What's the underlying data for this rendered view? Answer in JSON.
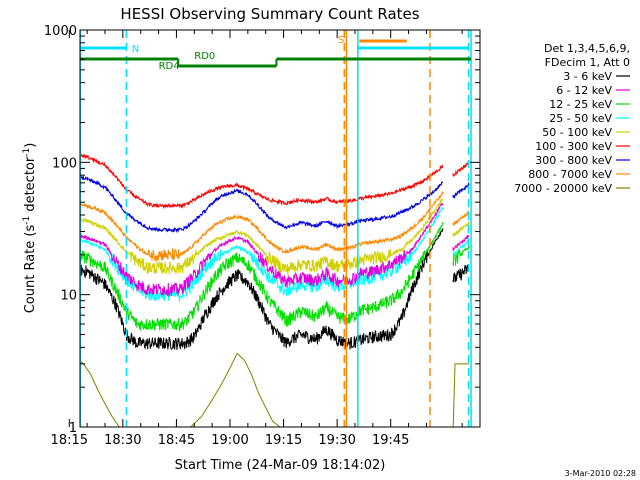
{
  "chart_data": {
    "type": "line",
    "title": "HESSI Observing Summary Count Rates",
    "xlabel": "Start Time (24-Mar-09 18:14:02)",
    "ylabel_main": "Count Rate (s",
    "ylabel_sup1": "-1",
    "ylabel_mid": " detector",
    "ylabel_sup2": "-1",
    "ylabel_end": ")",
    "y_scale": "log",
    "ylim": [
      1,
      1000
    ],
    "xlim_minutes": [
      18.0,
      130.0
    ],
    "x_ticks": [
      {
        "label": "18:15",
        "m": 15
      },
      {
        "label": "18:30",
        "m": 30
      },
      {
        "label": "18:45",
        "m": 45
      },
      {
        "label": "19:00",
        "m": 60
      },
      {
        "label": "19:15",
        "m": 75
      },
      {
        "label": "19:30",
        "m": 90
      },
      {
        "label": "19:45",
        "m": 105
      }
    ],
    "y_ticks": [
      {
        "label": "1",
        "v": 1
      },
      {
        "label": "10",
        "v": 10
      },
      {
        "label": "100",
        "v": 100
      },
      {
        "label": "1000",
        "v": 1000
      }
    ],
    "legend_header": [
      "Det 1,3,4,5,6,9,",
      "FDecim 1, Att 0"
    ],
    "legend_position": "right",
    "series": [
      {
        "name": "3 - 6 keV",
        "color": "#000000",
        "x": [
          15,
          20,
          25,
          28,
          31,
          34,
          37,
          40,
          43,
          46,
          47.5,
          50,
          53,
          56,
          59,
          62,
          65,
          68,
          71,
          74,
          76,
          76.5,
          80,
          84,
          87,
          90,
          93,
          95,
          96,
          100,
          105,
          108,
          111,
          114,
          117,
          120,
          122.5,
          127
        ],
        "y": [
          16,
          15,
          12,
          8.5,
          5,
          4.3,
          4.3,
          4.3,
          4.3,
          4.3,
          4.3,
          4.8,
          7,
          9.5,
          12,
          14,
          12.5,
          9,
          6,
          4.8,
          4.3,
          4.5,
          5,
          4.6,
          5.5,
          4.6,
          4.3,
          4.4,
          4.5,
          4.8,
          5,
          6.5,
          11,
          17,
          24,
          33,
          13,
          16
        ]
      },
      {
        "name": "6 - 12 keV",
        "color": "#e000e0",
        "x": [
          15,
          20,
          25,
          28,
          31,
          34,
          37,
          40,
          43,
          46,
          47.5,
          50,
          53,
          56,
          59,
          62,
          65,
          68,
          71,
          74,
          76,
          76.5,
          80,
          84,
          87,
          90,
          93,
          95,
          96,
          100,
          105,
          108,
          111,
          114,
          117,
          120,
          122.5,
          127
        ],
        "y": [
          29,
          27,
          24,
          18,
          14,
          12,
          11,
          11,
          11,
          11,
          12,
          14,
          18,
          22,
          25,
          27,
          25,
          20,
          16,
          13.5,
          12.5,
          12.7,
          13.5,
          12.8,
          14.5,
          12.8,
          13,
          13.5,
          14.5,
          15,
          17,
          19,
          22,
          29,
          38,
          52,
          22,
          28
        ]
      },
      {
        "name": "12 - 25 keV",
        "color": "#00e000",
        "x": [
          15,
          20,
          25,
          28,
          31,
          34,
          37,
          40,
          43,
          46,
          47.5,
          50,
          53,
          56,
          59,
          62,
          65,
          68,
          71,
          74,
          76,
          76.5,
          80,
          84,
          87,
          90,
          93,
          95,
          96,
          100,
          105,
          108,
          111,
          114,
          117,
          120,
          122.5,
          127
        ],
        "y": [
          21,
          19,
          16,
          11,
          7.5,
          6,
          6,
          6,
          6,
          6,
          6.2,
          7.5,
          10.5,
          14,
          17,
          19,
          17,
          12.5,
          9,
          7.3,
          6.3,
          6.5,
          7.5,
          6.8,
          8,
          6.8,
          6.5,
          7,
          7.5,
          8,
          9,
          10.5,
          14,
          19,
          26,
          36,
          18,
          23
        ]
      },
      {
        "name": "25 - 50 keV",
        "color": "#00ffff",
        "x": [
          15,
          20,
          25,
          28,
          31,
          34,
          37,
          40,
          43,
          46,
          47.5,
          50,
          53,
          56,
          59,
          62,
          65,
          68,
          71,
          74,
          76,
          76.5,
          80,
          84,
          87,
          90,
          93,
          95,
          96,
          100,
          105,
          108,
          111,
          114,
          117,
          120,
          122.5,
          127
        ],
        "y": [
          27,
          25,
          22,
          17,
          13,
          11,
          10,
          10,
          10,
          10,
          10.5,
          12.5,
          16,
          19,
          21,
          23,
          21,
          17,
          13.5,
          11.5,
          10.5,
          11,
          12,
          11.5,
          13,
          11.5,
          12,
          12.5,
          13,
          13.5,
          15,
          17,
          20,
          26,
          35,
          48,
          20,
          26
        ]
      },
      {
        "name": "50 - 100 keV",
        "color": "#d0d000",
        "x": [
          15,
          20,
          25,
          28,
          31,
          34,
          37,
          40,
          43,
          46,
          47.5,
          50,
          53,
          56,
          59,
          62,
          65,
          68,
          71,
          74,
          76,
          76.5,
          80,
          84,
          87,
          90,
          93,
          95,
          96,
          100,
          105,
          108,
          111,
          114,
          117,
          120,
          122.5,
          127
        ],
        "y": [
          38,
          36,
          32,
          26,
          21,
          18,
          16,
          16,
          16,
          16,
          17,
          19,
          23,
          26,
          28,
          30,
          28,
          23,
          19,
          16.5,
          15.5,
          16,
          17,
          16.5,
          18,
          16.5,
          17,
          17.5,
          18,
          19,
          20,
          22,
          26,
          32,
          42,
          55,
          28,
          35
        ]
      },
      {
        "name": "100 - 300 keV",
        "color": "#ff0000",
        "x": [
          15,
          20,
          25,
          28,
          31,
          34,
          37,
          40,
          43,
          46,
          47.5,
          50,
          53,
          56,
          59,
          62,
          65,
          68,
          71,
          74,
          76,
          76.5,
          80,
          84,
          87,
          90,
          93,
          95,
          96,
          100,
          105,
          108,
          111,
          114,
          117,
          120,
          122.5,
          127
        ],
        "y": [
          120,
          110,
          95,
          78,
          62,
          54,
          48,
          47,
          47,
          47,
          48,
          52,
          58,
          63,
          66,
          67,
          63,
          57,
          52,
          50,
          49,
          50,
          52,
          50,
          53,
          50,
          51,
          52,
          53,
          55,
          58,
          62,
          66,
          72,
          82,
          95,
          80,
          100
        ]
      },
      {
        "name": "300 - 800 keV",
        "color": "#0000e0",
        "x": [
          15,
          20,
          25,
          28,
          31,
          34,
          37,
          40,
          43,
          46,
          47.5,
          50,
          53,
          56,
          59,
          62,
          65,
          68,
          71,
          74,
          76,
          76.5,
          80,
          84,
          87,
          90,
          93,
          95,
          96,
          100,
          105,
          108,
          111,
          114,
          117,
          120,
          122.5,
          127
        ],
        "y": [
          80,
          75,
          65,
          52,
          41,
          36,
          32,
          31,
          31,
          31,
          32,
          36,
          43,
          52,
          58,
          61,
          57,
          47,
          38,
          34,
          32,
          33,
          35,
          33,
          36,
          33,
          34,
          35,
          36,
          37,
          39,
          42,
          46,
          52,
          60,
          72,
          55,
          68
        ]
      },
      {
        "name": "800 - 7000 keV",
        "color": "#ff8800",
        "x": [
          15,
          20,
          25,
          28,
          31,
          34,
          37,
          40,
          43,
          46,
          47.5,
          50,
          53,
          56,
          59,
          62,
          65,
          68,
          71,
          74,
          76,
          76.5,
          80,
          84,
          87,
          90,
          93,
          95,
          96,
          100,
          105,
          108,
          111,
          114,
          117,
          120,
          122.5,
          127
        ],
        "y": [
          50,
          47,
          42,
          34,
          27,
          23,
          20,
          20,
          20,
          20,
          21,
          24,
          29,
          34,
          37,
          39,
          37,
          31,
          25,
          22,
          21,
          21.5,
          23,
          22,
          24,
          22,
          22.5,
          23,
          24,
          25,
          26,
          28,
          32,
          38,
          48,
          60,
          34,
          42
        ]
      },
      {
        "name": "7000 - 20000 keV",
        "color": "#808000",
        "x": [
          15,
          17,
          19,
          21,
          23,
          25,
          27,
          29,
          31,
          34,
          37,
          40,
          43,
          46,
          49,
          52,
          55,
          58,
          60,
          62,
          64,
          66,
          68,
          70,
          72,
          74,
          76,
          78,
          80,
          82,
          84,
          86,
          88,
          90,
          92,
          94,
          96,
          100,
          104,
          108,
          112,
          116,
          120,
          122.5,
          123,
          127
        ],
        "y": [
          4,
          3.3,
          3,
          2.5,
          1.9,
          1.5,
          1.2,
          1,
          1,
          1,
          1,
          1,
          1,
          1,
          1,
          1.2,
          1.6,
          2.2,
          2.8,
          3.6,
          3.2,
          2.5,
          1.8,
          1.4,
          1.1,
          1,
          1,
          1,
          1,
          1,
          1,
          1,
          1,
          1,
          1,
          1,
          1,
          1,
          1,
          1,
          1,
          1,
          1,
          1,
          3,
          3
        ]
      }
    ],
    "annotations": {
      "labels": {
        "N": "N",
        "S": "S",
        "RD0": "RD0",
        "RD4": "RD4"
      }
    }
  },
  "footer_date": "3-Mar-2010 02:28"
}
